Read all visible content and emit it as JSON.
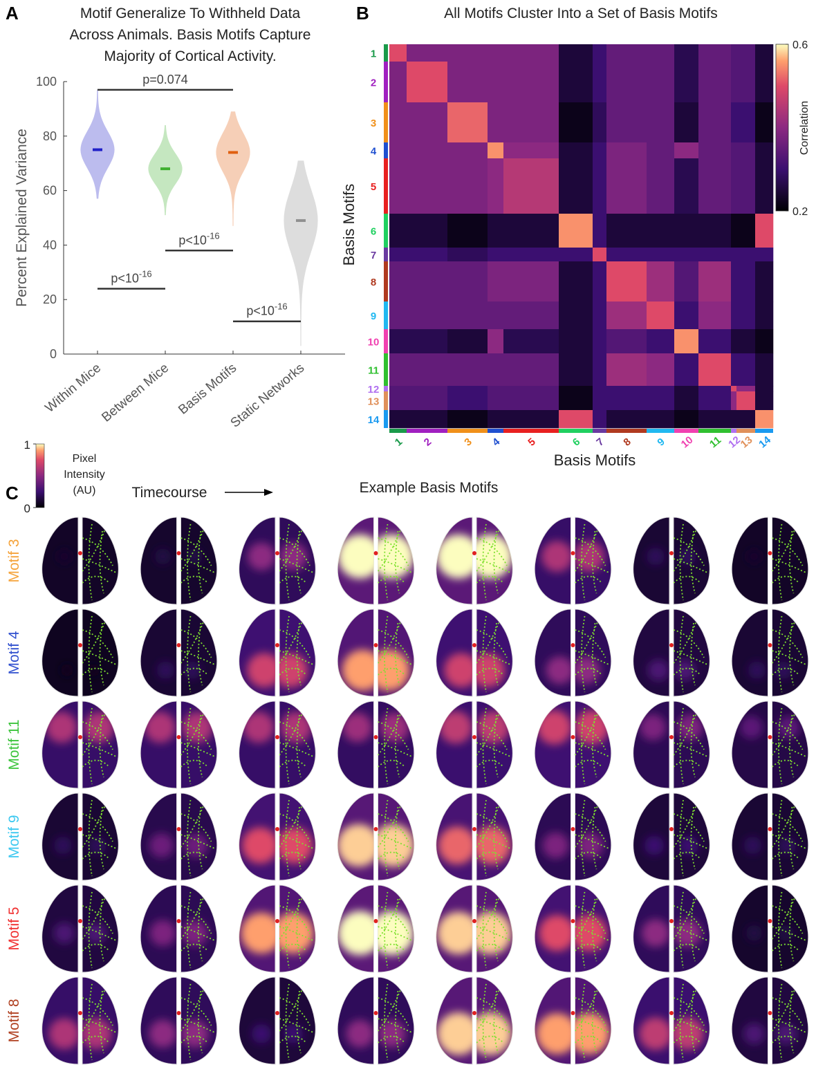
{
  "panel_labels": [
    "A",
    "B",
    "C"
  ],
  "chart_data": [
    {
      "type": "violin",
      "title_lines": [
        "Motif Generalize To Withheld Data",
        "Across Animals. Basis Motifs Capture",
        "Majority of Cortical Activity."
      ],
      "ylabel": "Percent Explained Variance",
      "categories": [
        "Within Mice",
        "Between Mice",
        "Basis Motifs",
        "Static Networks"
      ],
      "values": [
        75,
        68,
        74,
        49
      ],
      "min": [
        57,
        51,
        47,
        3
      ],
      "max": [
        97,
        84,
        89,
        71
      ],
      "colors": [
        "#2020c8",
        "#40b030",
        "#e06010",
        "#909090"
      ],
      "ylim": [
        0,
        100
      ],
      "yticks": [
        0,
        20,
        40,
        60,
        80,
        100
      ],
      "annotations": [
        {
          "text": "p=0.074",
          "y": 97,
          "from": 0,
          "to": 2
        },
        {
          "text": "p<10",
          "sup": "-16",
          "y": 24,
          "from": 0,
          "to": 1
        },
        {
          "text": "p<10",
          "sup": "-16",
          "y": 38,
          "from": 1,
          "to": 2
        },
        {
          "text": "p<10",
          "sup": "-16",
          "y": 12,
          "from": 2,
          "to": 3
        }
      ]
    },
    {
      "type": "heatmap",
      "title": "All Motifs Cluster Into a Set of Basis Motifs",
      "xlabel": "Basis Motifs",
      "ylabel": "Basis Motifs",
      "categories": [
        "1",
        "2",
        "3",
        "4",
        "5",
        "6",
        "7",
        "8",
        "9",
        "10",
        "11",
        "12",
        "13",
        "14"
      ],
      "colors": [
        "#1a9a4a",
        "#a020c0",
        "#f0901a",
        "#2050d0",
        "#e82020",
        "#20d060",
        "#6a3aa0",
        "#b03a20",
        "#20b8f0",
        "#f040b0",
        "#30c030",
        "#b070f0",
        "#e0905a",
        "#1a9af0"
      ],
      "counts": [
        25,
        59,
        58,
        23,
        80,
        49,
        20,
        58,
        40,
        35,
        47,
        8,
        27,
        26
      ],
      "matrix": [
        [
          0.5,
          0.38,
          0.38,
          0.38,
          0.38,
          0.25,
          0.3,
          0.35,
          0.35,
          0.27,
          0.35,
          0.33,
          0.33,
          0.25
        ],
        [
          0.38,
          0.5,
          0.38,
          0.38,
          0.38,
          0.25,
          0.3,
          0.35,
          0.35,
          0.27,
          0.35,
          0.33,
          0.33,
          0.25
        ],
        [
          0.38,
          0.38,
          0.52,
          0.38,
          0.38,
          0.22,
          0.28,
          0.35,
          0.35,
          0.25,
          0.35,
          0.3,
          0.3,
          0.22
        ],
        [
          0.38,
          0.38,
          0.38,
          0.55,
          0.4,
          0.25,
          0.3,
          0.38,
          0.35,
          0.4,
          0.35,
          0.33,
          0.33,
          0.25
        ],
        [
          0.38,
          0.38,
          0.38,
          0.4,
          0.45,
          0.25,
          0.3,
          0.38,
          0.35,
          0.27,
          0.35,
          0.33,
          0.33,
          0.25
        ],
        [
          0.25,
          0.25,
          0.22,
          0.25,
          0.25,
          0.55,
          0.3,
          0.25,
          0.25,
          0.25,
          0.25,
          0.22,
          0.22,
          0.5
        ],
        [
          0.3,
          0.3,
          0.28,
          0.3,
          0.3,
          0.3,
          0.5,
          0.3,
          0.3,
          0.3,
          0.3,
          0.3,
          0.3,
          0.3
        ],
        [
          0.35,
          0.35,
          0.35,
          0.38,
          0.38,
          0.25,
          0.3,
          0.5,
          0.42,
          0.33,
          0.42,
          0.3,
          0.3,
          0.25
        ],
        [
          0.35,
          0.35,
          0.35,
          0.35,
          0.35,
          0.25,
          0.3,
          0.42,
          0.5,
          0.3,
          0.4,
          0.3,
          0.3,
          0.25
        ],
        [
          0.27,
          0.27,
          0.25,
          0.4,
          0.27,
          0.25,
          0.3,
          0.33,
          0.3,
          0.55,
          0.3,
          0.25,
          0.25,
          0.22
        ],
        [
          0.35,
          0.35,
          0.35,
          0.35,
          0.35,
          0.25,
          0.3,
          0.42,
          0.4,
          0.3,
          0.5,
          0.3,
          0.3,
          0.25
        ],
        [
          0.33,
          0.33,
          0.3,
          0.33,
          0.33,
          0.22,
          0.3,
          0.3,
          0.3,
          0.25,
          0.3,
          0.5,
          0.4,
          0.25
        ],
        [
          0.33,
          0.33,
          0.3,
          0.33,
          0.33,
          0.22,
          0.3,
          0.3,
          0.3,
          0.25,
          0.3,
          0.4,
          0.5,
          0.25
        ],
        [
          0.25,
          0.25,
          0.22,
          0.25,
          0.25,
          0.5,
          0.3,
          0.25,
          0.25,
          0.22,
          0.25,
          0.25,
          0.25,
          0.55
        ]
      ],
      "clim": [
        0.2,
        0.6
      ],
      "cticks": [
        0.2,
        0.6
      ],
      "colorbar_label": "Correlation"
    }
  ],
  "panel_c": {
    "colorbar_label_lines": [
      "Pixel",
      "Intensity",
      "(AU)"
    ],
    "cticks": [
      0,
      1
    ],
    "timecourse": "Timecourse",
    "title": "Example Basis Motifs",
    "rows": [
      {
        "label": "Motif 3",
        "color": "#f5a33a",
        "intensity": [
          0.1,
          0.15,
          0.5,
          1,
          1,
          0.6,
          0.2,
          0.1
        ]
      },
      {
        "label": "Motif 4",
        "color": "#2f4fcf",
        "intensity": [
          0.05,
          0.2,
          0.7,
          0.9,
          0.7,
          0.5,
          0.3,
          0.2
        ]
      },
      {
        "label": "Motif 11",
        "color": "#3cc43c",
        "intensity": [
          0.6,
          0.6,
          0.6,
          0.55,
          0.65,
          0.7,
          0.45,
          0.35
        ]
      },
      {
        "label": "Motif 9",
        "color": "#3cc8f0",
        "intensity": [
          0.2,
          0.4,
          0.75,
          0.95,
          0.8,
          0.45,
          0.25,
          0.2
        ]
      },
      {
        "label": "Motif 5",
        "color": "#f03030",
        "intensity": [
          0.3,
          0.45,
          0.9,
          1,
          0.95,
          0.75,
          0.5,
          0.15
        ]
      },
      {
        "label": "Motif 8",
        "color": "#b04020",
        "intensity": [
          0.6,
          0.5,
          0.25,
          0.5,
          0.95,
          0.9,
          0.65,
          0.3
        ]
      }
    ]
  }
}
